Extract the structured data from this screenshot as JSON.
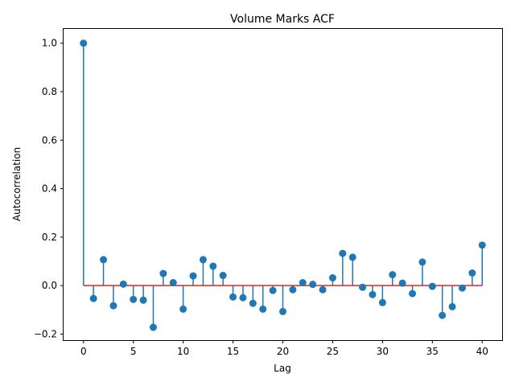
{
  "chart_data": {
    "type": "stem",
    "title": "Volume Marks ACF",
    "xlabel": "Lag",
    "ylabel": "Autocorrelation",
    "xlim": [
      -2,
      42
    ],
    "ylim": [
      -0.225,
      1.0588
    ],
    "xticks": [
      0,
      5,
      10,
      15,
      20,
      25,
      30,
      35,
      40
    ],
    "xtick_labels": [
      "0",
      "5",
      "10",
      "15",
      "20",
      "25",
      "30",
      "35",
      "40"
    ],
    "yticks": [
      -0.2,
      0.0,
      0.2,
      0.4,
      0.6,
      0.8,
      1.0
    ],
    "ytick_labels": [
      "−0.2",
      "0.0",
      "0.2",
      "0.4",
      "0.6",
      "0.8",
      "1.0"
    ],
    "grid": false,
    "baseline": 0,
    "series": [
      {
        "x": [
          0,
          1,
          2,
          3,
          4,
          5,
          6,
          7,
          8,
          9,
          10,
          11,
          12,
          13,
          14,
          15,
          16,
          17,
          18,
          19,
          20,
          21,
          22,
          23,
          24,
          25,
          26,
          27,
          28,
          29,
          30,
          31,
          32,
          33,
          34,
          35,
          36,
          37,
          38,
          39,
          40
        ],
        "values": [
          1.0,
          -0.053,
          0.107,
          -0.083,
          0.006,
          -0.057,
          -0.06,
          -0.172,
          0.05,
          0.012,
          -0.097,
          0.04,
          0.107,
          0.08,
          0.042,
          -0.047,
          -0.05,
          -0.073,
          -0.097,
          -0.02,
          -0.107,
          -0.017,
          0.012,
          0.005,
          -0.017,
          0.032,
          0.133,
          0.117,
          -0.007,
          -0.037,
          -0.07,
          0.045,
          0.01,
          -0.033,
          0.097,
          -0.003,
          -0.123,
          -0.087,
          -0.01,
          0.052,
          0.167
        ]
      }
    ],
    "colors": {
      "stem": "#1f77b4",
      "marker": "#1f77b4",
      "baseline": "#d62728"
    }
  }
}
